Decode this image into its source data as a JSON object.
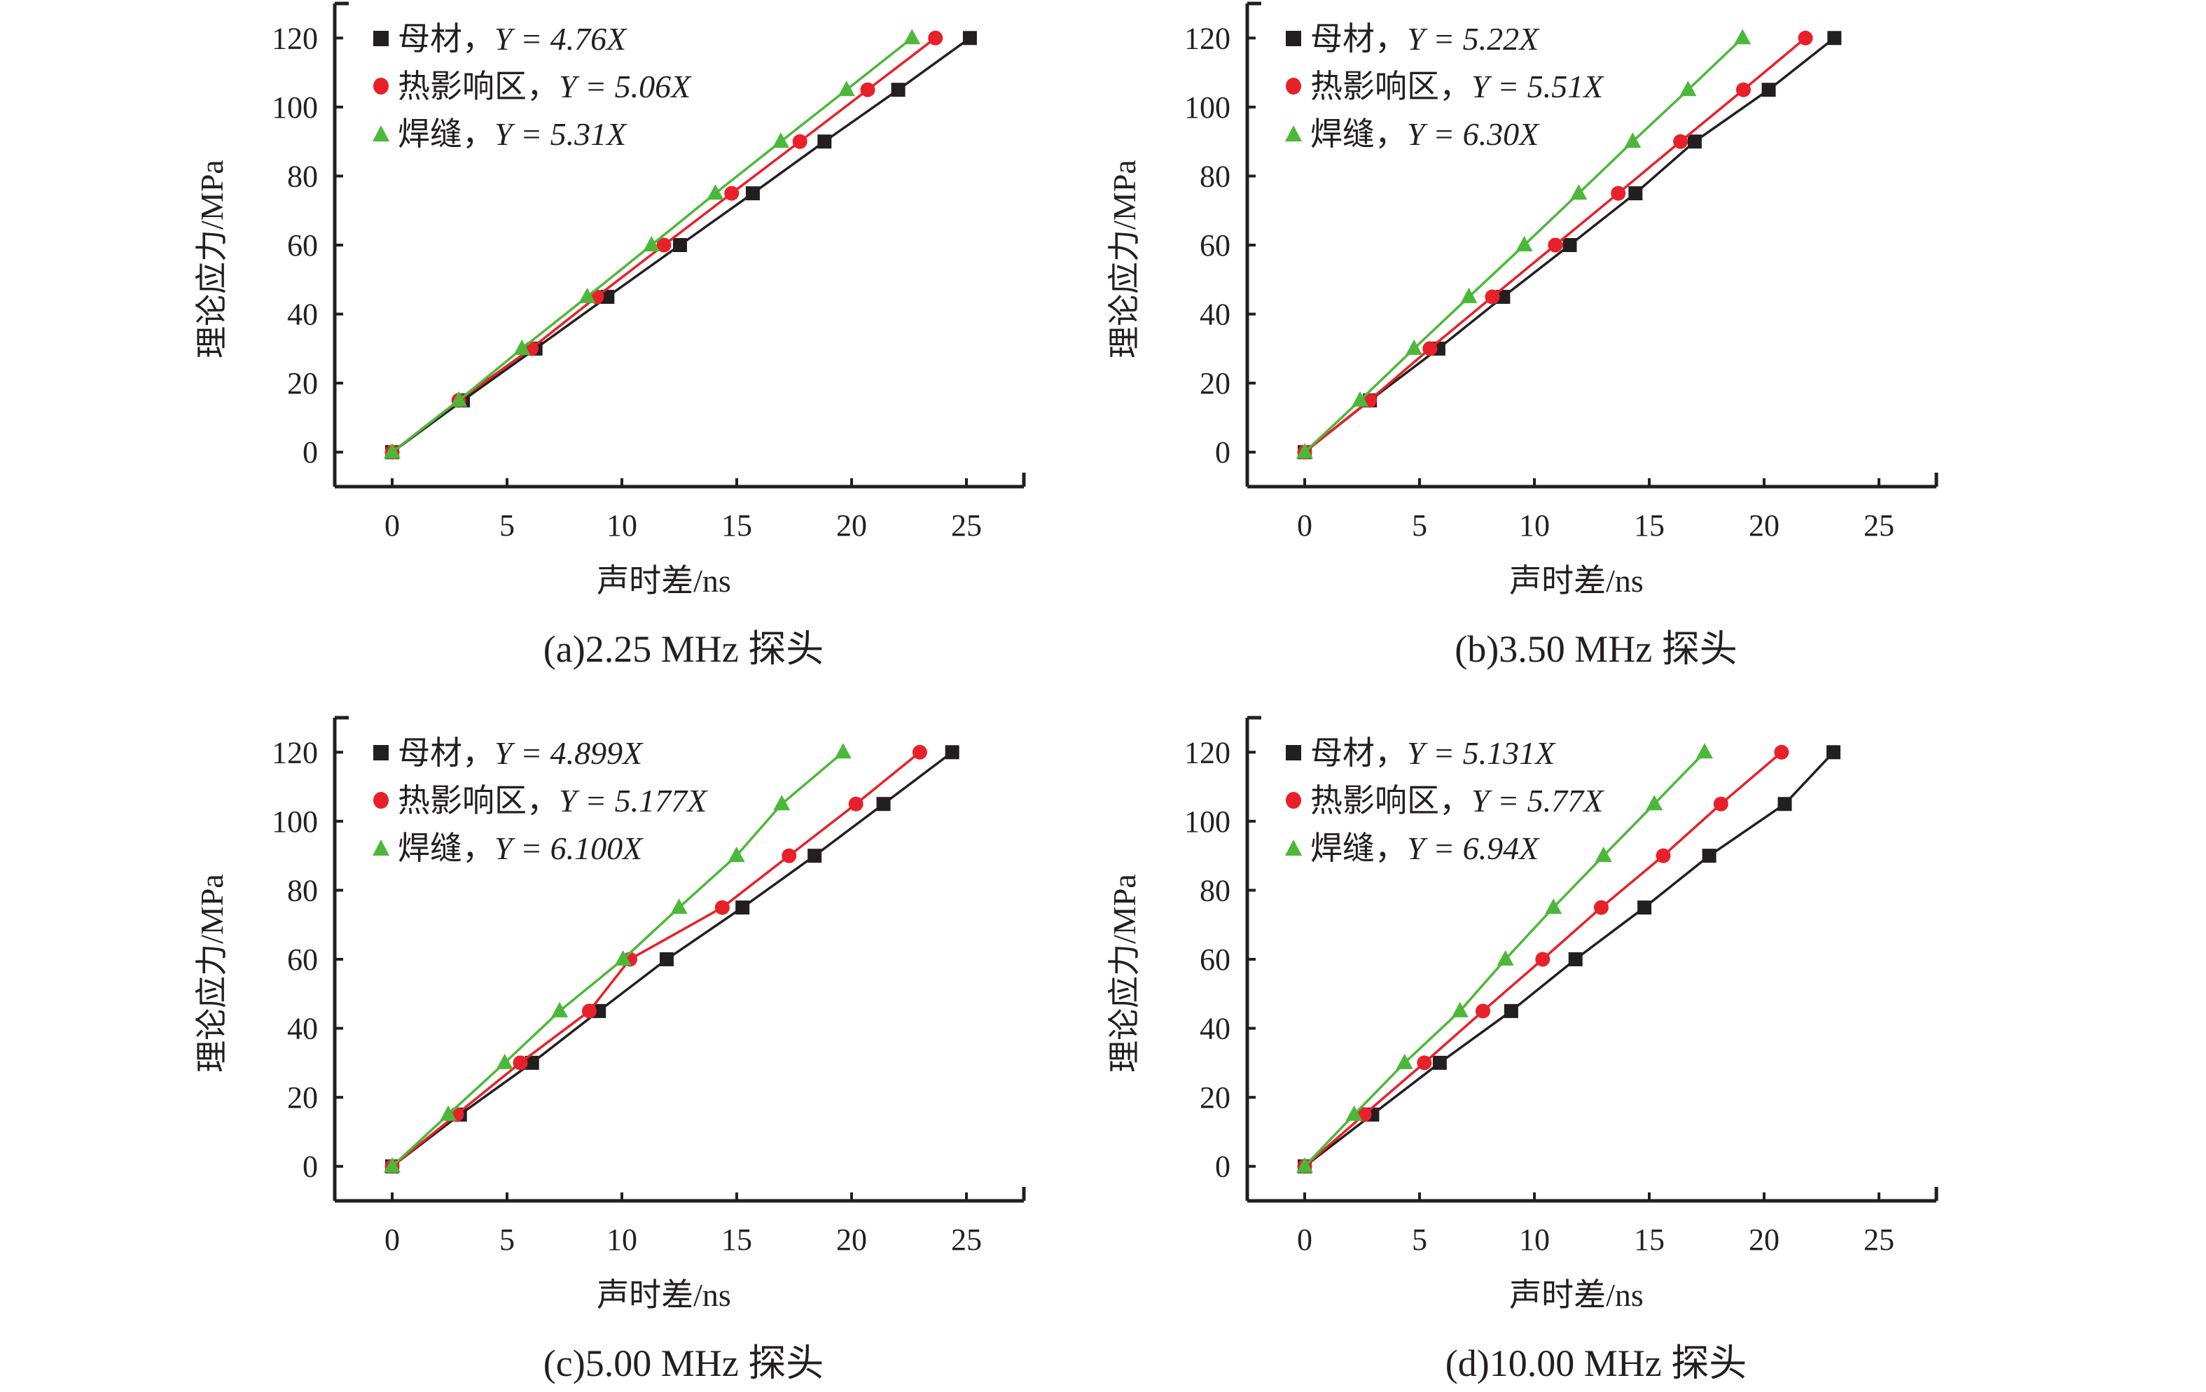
{
  "figure": {
    "panel_count": 4
  },
  "chart_data": [
    {
      "type": "line",
      "id": "a",
      "caption": "(a)2.25 MHz 探头",
      "xlabel": "声时差/ns",
      "ylabel": "理论应力/MPa",
      "xlim": [
        -2.5,
        27.5
      ],
      "ylim": [
        -10,
        130
      ],
      "xticks": [
        0,
        5,
        10,
        15,
        20,
        25
      ],
      "yticks": [
        0,
        20,
        40,
        60,
        80,
        100,
        120
      ],
      "grid": false,
      "legend_position": "top-left",
      "series": [
        {
          "name": "母材",
          "equation": "Y = 4.76X",
          "color": "#231f20",
          "marker": "square",
          "x": [
            0,
            3.08,
            6.24,
            9.37,
            12.53,
            15.7,
            18.82,
            22.03,
            25.15
          ],
          "y": [
            0,
            15,
            30,
            45,
            60,
            75,
            90,
            105,
            120
          ]
        },
        {
          "name": "热影响区",
          "equation": "Y = 5.06X",
          "color": "#e8202a",
          "marker": "circle",
          "x": [
            0,
            2.9,
            6.05,
            8.9,
            11.83,
            14.78,
            17.75,
            20.7,
            23.65
          ],
          "y": [
            0,
            15,
            30,
            45,
            60,
            75,
            90,
            105,
            120
          ]
        },
        {
          "name": "焊缝",
          "equation": "Y = 5.31X",
          "color": "#4cb83a",
          "marker": "triangle",
          "x": [
            0,
            2.9,
            5.65,
            8.49,
            11.29,
            14.07,
            16.92,
            19.78,
            22.63
          ],
          "y": [
            0,
            15,
            30,
            45,
            60,
            75,
            90,
            105,
            120
          ]
        }
      ]
    },
    {
      "type": "line",
      "id": "b",
      "caption": "(b)3.50 MHz 探头",
      "xlabel": "声时差/ns",
      "ylabel": "理论应力/MPa",
      "xlim": [
        -2.5,
        27.5
      ],
      "ylim": [
        -10,
        130
      ],
      "xticks": [
        0,
        5,
        10,
        15,
        20,
        25
      ],
      "yticks": [
        0,
        20,
        40,
        60,
        80,
        100,
        120
      ],
      "grid": false,
      "legend_position": "top-left",
      "series": [
        {
          "name": "母材",
          "equation": "Y = 5.22X",
          "color": "#231f20",
          "marker": "square",
          "x": [
            0,
            2.84,
            5.82,
            8.64,
            11.54,
            14.4,
            16.98,
            20.2,
            23.06
          ],
          "y": [
            0,
            15,
            30,
            45,
            60,
            75,
            90,
            105,
            120
          ]
        },
        {
          "name": "热影响区",
          "equation": "Y = 5.51X",
          "color": "#e8202a",
          "marker": "circle",
          "x": [
            0,
            2.82,
            5.45,
            8.17,
            10.91,
            13.65,
            16.36,
            19.1,
            21.8
          ],
          "y": [
            0,
            15,
            30,
            45,
            60,
            75,
            90,
            105,
            120
          ]
        },
        {
          "name": "焊缝",
          "equation": "Y = 6.30X",
          "color": "#4cb83a",
          "marker": "triangle",
          "x": [
            0,
            2.41,
            4.76,
            7.15,
            9.56,
            11.93,
            14.28,
            16.69,
            19.06
          ],
          "y": [
            0,
            15,
            30,
            45,
            60,
            75,
            90,
            105,
            120
          ]
        }
      ]
    },
    {
      "type": "line",
      "id": "c",
      "caption": "(c)5.00 MHz 探头",
      "xlabel": "声时差/ns",
      "ylabel": "理论应力/MPa",
      "xlim": [
        -2.5,
        27.5
      ],
      "ylim": [
        -10,
        130
      ],
      "xticks": [
        0,
        5,
        10,
        15,
        20,
        25
      ],
      "yticks": [
        0,
        20,
        40,
        60,
        80,
        100,
        120
      ],
      "grid": false,
      "legend_position": "top-left",
      "series": [
        {
          "name": "母材",
          "equation": "Y = 4.899X",
          "color": "#231f20",
          "marker": "square",
          "x": [
            0,
            2.95,
            6.09,
            9.0,
            11.95,
            15.25,
            18.39,
            21.39,
            24.38
          ],
          "y": [
            0,
            15,
            30,
            45,
            60,
            75,
            90,
            105,
            120
          ]
        },
        {
          "name": "热影响区",
          "equation": "Y = 5.177X",
          "color": "#e8202a",
          "marker": "circle",
          "x": [
            0,
            2.8,
            5.58,
            8.58,
            10.35,
            14.37,
            17.28,
            20.19,
            22.97
          ],
          "y": [
            0,
            15,
            30,
            45,
            60,
            75,
            90,
            105,
            120
          ]
        },
        {
          "name": "焊缝",
          "equation": "Y = 6.100X",
          "color": "#4cb83a",
          "marker": "triangle",
          "x": [
            0,
            2.44,
            4.9,
            7.29,
            10.05,
            12.49,
            14.99,
            16.96,
            19.63
          ],
          "y": [
            0,
            15,
            30,
            45,
            60,
            75,
            90,
            105,
            120
          ]
        }
      ]
    },
    {
      "type": "line",
      "id": "d",
      "caption": "(d)10.00 MHz 探头",
      "xlabel": "声时差/ns",
      "ylabel": "理论应力/MPa",
      "xlim": [
        -2.5,
        27.5
      ],
      "ylim": [
        -10,
        130
      ],
      "xticks": [
        0,
        5,
        10,
        15,
        20,
        25
      ],
      "yticks": [
        0,
        20,
        40,
        60,
        80,
        100,
        120
      ],
      "grid": false,
      "legend_position": "top-left",
      "series": [
        {
          "name": "母材",
          "equation": "Y = 5.131X",
          "color": "#231f20",
          "marker": "square",
          "x": [
            0,
            2.94,
            5.88,
            8.99,
            11.79,
            14.79,
            17.61,
            20.9,
            23.02
          ],
          "y": [
            0,
            15,
            30,
            45,
            60,
            75,
            90,
            105,
            120
          ]
        },
        {
          "name": "热影响区",
          "equation": "Y = 5.77X",
          "color": "#e8202a",
          "marker": "circle",
          "x": [
            0,
            2.59,
            5.21,
            7.76,
            10.36,
            12.91,
            15.61,
            18.12,
            20.76
          ],
          "y": [
            0,
            15,
            30,
            45,
            60,
            75,
            90,
            105,
            120
          ]
        },
        {
          "name": "焊缝",
          "equation": "Y = 6.94X",
          "color": "#4cb83a",
          "marker": "triangle",
          "x": [
            0,
            2.15,
            4.35,
            6.76,
            8.74,
            10.83,
            13.01,
            15.22,
            17.41
          ],
          "y": [
            0,
            15,
            30,
            45,
            60,
            75,
            90,
            105,
            120
          ]
        }
      ]
    }
  ]
}
